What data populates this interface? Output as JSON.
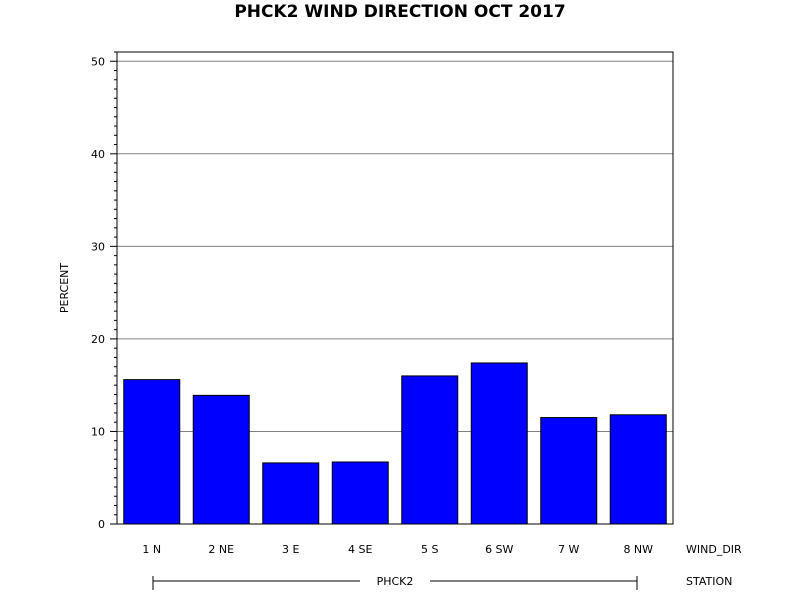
{
  "chart_data": {
    "type": "bar",
    "title": "PHCK2 WIND DIRECTION OCT 2017",
    "ylabel": "PERCENT",
    "xlabel": "WIND_DIR",
    "group_axis_label": "STATION",
    "group_label": "PHCK2",
    "categories": [
      "1 N",
      "2 NE",
      "3 E",
      "4 SE",
      "5 S",
      "6 SW",
      "7 W",
      "8 NW"
    ],
    "values": [
      15.6,
      13.9,
      6.6,
      6.7,
      16.0,
      17.4,
      11.5,
      11.8
    ],
    "ylim": [
      0,
      51
    ],
    "yticks": [
      0,
      10,
      20,
      30,
      40,
      50
    ],
    "grid": true,
    "bar_color": "#0000ff"
  }
}
